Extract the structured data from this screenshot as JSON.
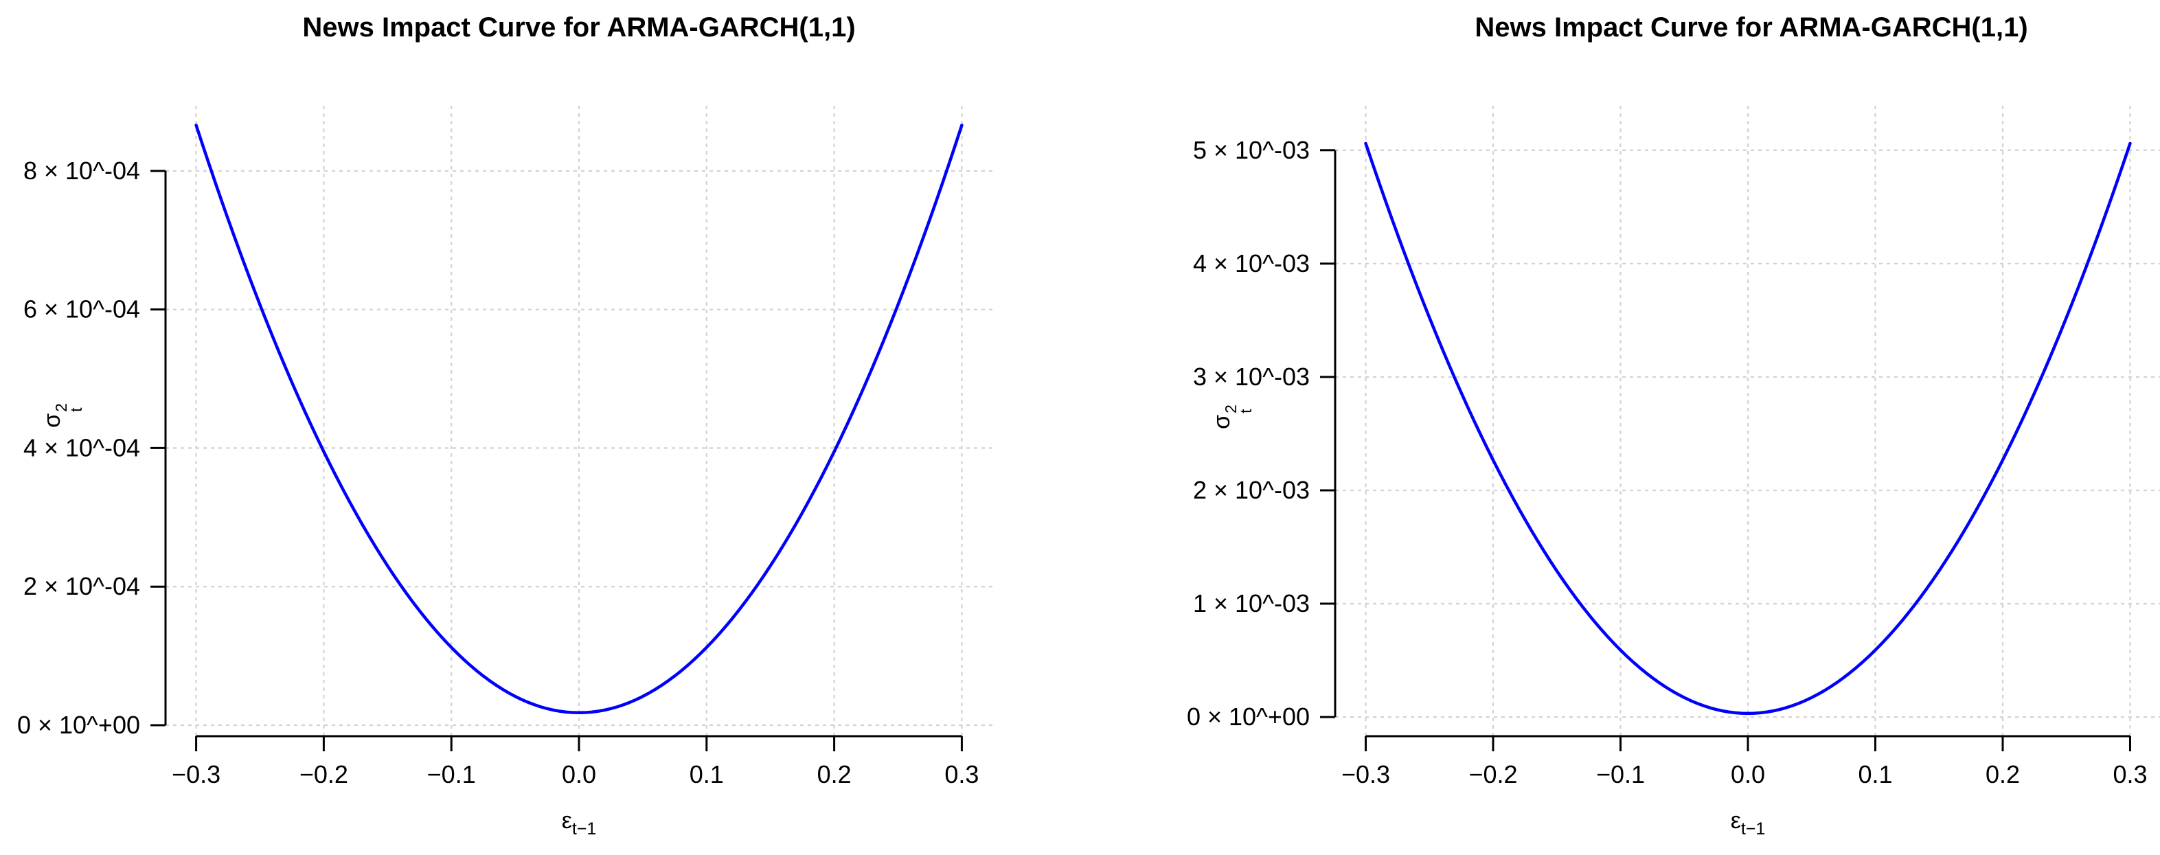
{
  "page": {
    "background": "#ffffff",
    "text_color": "#000000"
  },
  "chart_data": [
    {
      "type": "line",
      "title": "News Impact Curve for ARMA-GARCH(1,1)",
      "xlabel": {
        "base": "ε",
        "sub": "t−1"
      },
      "ylabel": {
        "base": "σ",
        "sup": "2",
        "sub": "t"
      },
      "line_color": "#0000ff",
      "grid": true,
      "grid_color": "#d3d3d3",
      "axis_color": "#000000",
      "xlim": [
        -0.324,
        0.324
      ],
      "ylim": [
        -1.59e-05,
        0.0009
      ],
      "x_ticks": [
        {
          "value": -0.3,
          "label": "−0.3"
        },
        {
          "value": -0.2,
          "label": "−0.2"
        },
        {
          "value": -0.1,
          "label": "−0.1"
        },
        {
          "value": 0.0,
          "label": "0.0"
        },
        {
          "value": 0.1,
          "label": "0.1"
        },
        {
          "value": 0.2,
          "label": "0.2"
        },
        {
          "value": 0.3,
          "label": "0.3"
        }
      ],
      "y_ticks": [
        {
          "value": 0.0,
          "label": "0 × 10^+00"
        },
        {
          "value": 0.0002,
          "label": "2 × 10^-04"
        },
        {
          "value": 0.0004,
          "label": "4 × 10^-04"
        },
        {
          "value": 0.0006,
          "label": "6 × 10^-04"
        },
        {
          "value": 0.0008,
          "label": "8 × 10^-04"
        }
      ],
      "curve": {
        "form": "sigma2 = base + alpha * eps^2",
        "base": 1.8e-05,
        "alpha": 0.009422,
        "x_min": -0.3,
        "x_max": 0.3
      },
      "x": [
        -0.3,
        -0.25,
        -0.2,
        -0.15,
        -0.1,
        -0.05,
        0.0,
        0.05,
        0.1,
        0.15,
        0.2,
        0.25,
        0.3
      ],
      "y": [
        0.000866,
        0.000607,
        0.000395,
        0.00023,
        0.000112,
        4.16e-05,
        1.8e-05,
        4.16e-05,
        0.000112,
        0.00023,
        0.000395,
        0.000607,
        0.000866
      ]
    },
    {
      "type": "line",
      "title": "News Impact Curve for ARMA-GARCH(1,1)",
      "xlabel": {
        "base": "ε",
        "sub": "t−1"
      },
      "ylabel": {
        "base": "σ",
        "sup": "2",
        "sub": "t"
      },
      "line_color": "#0000ff",
      "grid": true,
      "grid_color": "#d3d3d3",
      "axis_color": "#000000",
      "xlim": [
        -0.324,
        0.324
      ],
      "ylim": [
        -0.000169,
        0.005429
      ],
      "x_ticks": [
        {
          "value": -0.3,
          "label": "−0.3"
        },
        {
          "value": -0.2,
          "label": "−0.2"
        },
        {
          "value": -0.1,
          "label": "−0.1"
        },
        {
          "value": 0.0,
          "label": "0.0"
        },
        {
          "value": 0.1,
          "label": "0.1"
        },
        {
          "value": 0.2,
          "label": "0.2"
        },
        {
          "value": 0.3,
          "label": "0.3"
        }
      ],
      "y_ticks": [
        {
          "value": 0.0,
          "label": "0 × 10^+00"
        },
        {
          "value": 0.001,
          "label": "1 × 10^-03"
        },
        {
          "value": 0.002,
          "label": "2 × 10^-03"
        },
        {
          "value": 0.003,
          "label": "3 × 10^-03"
        },
        {
          "value": 0.004,
          "label": "4 × 10^-03"
        },
        {
          "value": 0.005,
          "label": "5 × 10^-03"
        }
      ],
      "curve": {
        "form": "sigma2 = base + alpha * eps^2",
        "base": 3.2e-05,
        "alpha": 0.05587,
        "x_min": -0.3,
        "x_max": 0.3
      },
      "x": [
        -0.3,
        -0.25,
        -0.2,
        -0.15,
        -0.1,
        -0.05,
        0.0,
        0.05,
        0.1,
        0.15,
        0.2,
        0.25,
        0.3
      ],
      "y": [
        0.00506,
        0.003524,
        0.002267,
        0.001289,
        0.000591,
        0.000172,
        3.2e-05,
        0.000172,
        0.000591,
        0.001289,
        0.002267,
        0.003524,
        0.00506
      ]
    }
  ]
}
